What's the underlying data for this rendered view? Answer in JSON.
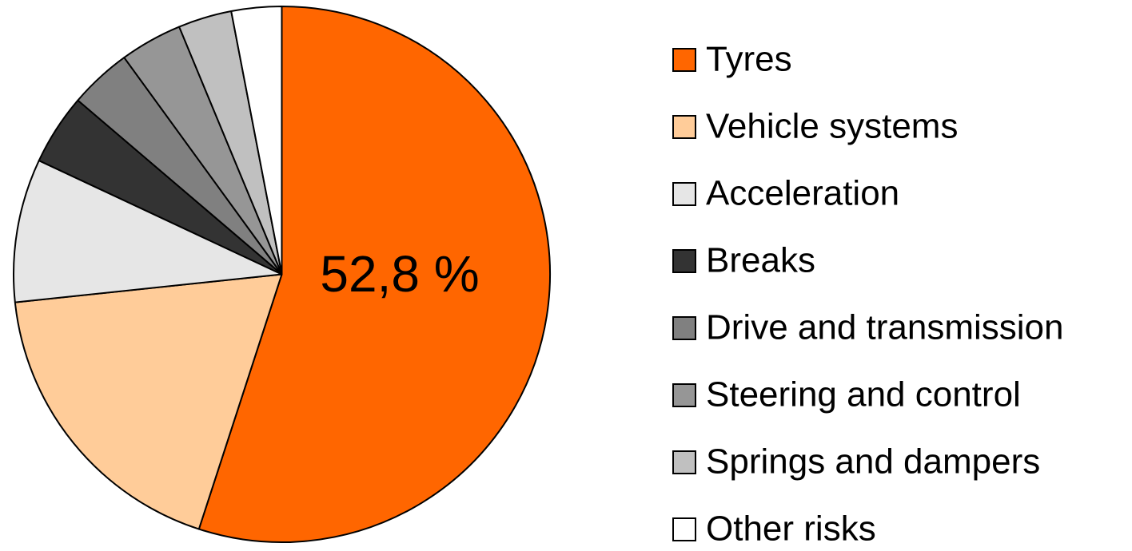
{
  "chart_data": {
    "type": "pie",
    "categories": [
      "Tyres",
      "Vehicle systems",
      "Acceleration",
      "Breaks",
      "Drive and transmission",
      "Steering and control",
      "Springs and dampers",
      "Other risks"
    ],
    "values": [
      52.8,
      17.6,
      8.3,
      4.1,
      3.6,
      3.6,
      3.1,
      2.9
    ],
    "value_labels": [
      "52,8 %",
      null,
      null,
      null,
      null,
      null,
      null,
      null
    ],
    "colors": [
      "#ff6600",
      "#ffcc99",
      "#e6e6e6",
      "#333333",
      "#808080",
      "#969696",
      "#c0c0c0",
      "#ffffff"
    ],
    "legend": "right"
  }
}
